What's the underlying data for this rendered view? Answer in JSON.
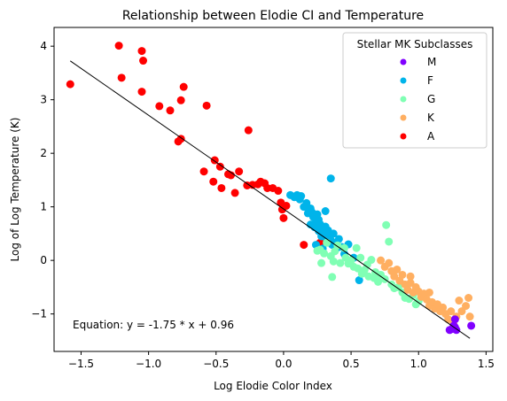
{
  "chart_data": {
    "type": "scatter",
    "title": "Relationship between Elodie CI and Temperature",
    "xlabel": "Log Elodie Color Index",
    "ylabel": "Log of Log Temperature (K)",
    "xlim": [
      -1.7,
      1.55
    ],
    "ylim": [
      -1.7,
      4.35
    ],
    "xticks": [
      -1.5,
      -1.0,
      -0.5,
      0.0,
      0.5,
      1.0,
      1.5
    ],
    "xtick_labels": [
      "−1.5",
      "−1.0",
      "−0.5",
      "0.0",
      "0.5",
      "1.0",
      "1.5"
    ],
    "yticks": [
      -1,
      0,
      1,
      2,
      3,
      4
    ],
    "ytick_labels": [
      "−1",
      "0",
      "1",
      "2",
      "3",
      "4"
    ],
    "grid": false,
    "legend": {
      "title": "Stellar MK Subclasses",
      "placement": "top-right",
      "entries": [
        "M",
        "F",
        "G",
        "K",
        "A"
      ]
    },
    "annotation": "Equation: y = -1.75 * x + 0.96",
    "fit_line": {
      "slope": -1.75,
      "intercept": 0.96,
      "x_range": [
        -1.58,
        1.38
      ]
    },
    "series": [
      {
        "name": "A",
        "color": "#ff0000",
        "points": [
          [
            -1.58,
            3.29
          ],
          [
            -1.22,
            4.01
          ],
          [
            -1.2,
            3.41
          ],
          [
            -1.05,
            3.91
          ],
          [
            -1.04,
            3.73
          ],
          [
            -1.05,
            3.15
          ],
          [
            -0.92,
            2.88
          ],
          [
            -0.84,
            2.8
          ],
          [
            -0.78,
            2.22
          ],
          [
            -0.76,
            2.27
          ],
          [
            -0.76,
            2.99
          ],
          [
            -0.74,
            3.24
          ],
          [
            -0.57,
            2.89
          ],
          [
            -0.59,
            1.66
          ],
          [
            -0.52,
            1.47
          ],
          [
            -0.51,
            1.87
          ],
          [
            -0.47,
            1.75
          ],
          [
            -0.46,
            1.35
          ],
          [
            -0.41,
            1.61
          ],
          [
            -0.39,
            1.59
          ],
          [
            -0.36,
            1.26
          ],
          [
            -0.33,
            1.66
          ],
          [
            -0.27,
            1.4
          ],
          [
            -0.26,
            2.43
          ],
          [
            -0.23,
            1.41
          ],
          [
            -0.19,
            1.42
          ],
          [
            -0.17,
            1.47
          ],
          [
            -0.14,
            1.44
          ],
          [
            -0.12,
            1.35
          ],
          [
            -0.08,
            1.35
          ],
          [
            -0.04,
            1.3
          ],
          [
            -0.02,
            1.08
          ],
          [
            -0.01,
            0.95
          ],
          [
            0.02,
            1.02
          ],
          [
            0.0,
            0.79
          ],
          [
            0.15,
            0.29
          ],
          [
            0.27,
            0.33
          ]
        ]
      },
      {
        "name": "F",
        "color": "#00b4ea",
        "points": [
          [
            0.05,
            1.22
          ],
          [
            0.08,
            1.18
          ],
          [
            0.1,
            1.22
          ],
          [
            0.12,
            1.14
          ],
          [
            0.13,
            1.2
          ],
          [
            0.15,
            1.0
          ],
          [
            0.17,
            1.07
          ],
          [
            0.18,
            0.88
          ],
          [
            0.2,
            0.97
          ],
          [
            0.21,
            0.9
          ],
          [
            0.22,
            0.81
          ],
          [
            0.23,
            0.62
          ],
          [
            0.24,
            0.71
          ],
          [
            0.25,
            0.86
          ],
          [
            0.26,
            0.76
          ],
          [
            0.26,
            0.55
          ],
          [
            0.27,
            0.68
          ],
          [
            0.28,
            0.45
          ],
          [
            0.29,
            0.6
          ],
          [
            0.3,
            0.52
          ],
          [
            0.31,
            0.63
          ],
          [
            0.32,
            0.4
          ],
          [
            0.33,
            0.56
          ],
          [
            0.34,
            0.47
          ],
          [
            0.35,
            0.38
          ],
          [
            0.36,
            0.29
          ],
          [
            0.37,
            0.5
          ],
          [
            0.38,
            0.33
          ],
          [
            0.39,
            0.22
          ],
          [
            0.41,
            0.4
          ],
          [
            0.43,
            0.25
          ],
          [
            0.45,
            0.12
          ],
          [
            0.48,
            0.3
          ],
          [
            0.52,
            0.05
          ],
          [
            0.56,
            -0.37
          ],
          [
            0.35,
            1.53
          ],
          [
            0.31,
            0.92
          ],
          [
            0.29,
            0.22
          ],
          [
            0.24,
            0.29
          ],
          [
            0.2,
            0.67
          ]
        ]
      },
      {
        "name": "G",
        "color": "#80ffb4",
        "points": [
          [
            0.25,
            0.18
          ],
          [
            0.27,
            0.2
          ],
          [
            0.28,
            -0.05
          ],
          [
            0.3,
            0.13
          ],
          [
            0.32,
            0.33
          ],
          [
            0.35,
            0.08
          ],
          [
            0.37,
            -0.02
          ],
          [
            0.38,
            0.17
          ],
          [
            0.4,
            0.28
          ],
          [
            0.42,
            -0.05
          ],
          [
            0.45,
            0.23
          ],
          [
            0.46,
            0.05
          ],
          [
            0.48,
            -0.06
          ],
          [
            0.5,
            0.0
          ],
          [
            0.52,
            -0.12
          ],
          [
            0.54,
            0.23
          ],
          [
            0.55,
            -0.15
          ],
          [
            0.57,
            0.05
          ],
          [
            0.58,
            -0.25
          ],
          [
            0.6,
            -0.18
          ],
          [
            0.62,
            -0.08
          ],
          [
            0.63,
            -0.3
          ],
          [
            0.65,
            0.01
          ],
          [
            0.67,
            -0.33
          ],
          [
            0.68,
            -0.22
          ],
          [
            0.7,
            -0.4
          ],
          [
            0.72,
            -0.27
          ],
          [
            0.75,
            -0.35
          ],
          [
            0.78,
            0.35
          ],
          [
            0.8,
            -0.45
          ],
          [
            0.82,
            -0.52
          ],
          [
            0.85,
            -0.5
          ],
          [
            0.88,
            -0.6
          ],
          [
            0.9,
            -0.7
          ],
          [
            0.93,
            -0.72
          ],
          [
            0.96,
            -0.65
          ],
          [
            0.98,
            -0.82
          ],
          [
            1.0,
            -0.76
          ],
          [
            0.36,
            -0.31
          ],
          [
            0.76,
            0.66
          ]
        ]
      },
      {
        "name": "K",
        "color": "#ffaf61",
        "points": [
          [
            0.72,
            0.0
          ],
          [
            0.75,
            -0.12
          ],
          [
            0.78,
            -0.05
          ],
          [
            0.8,
            -0.2
          ],
          [
            0.82,
            -0.3
          ],
          [
            0.84,
            -0.17
          ],
          [
            0.86,
            -0.38
          ],
          [
            0.88,
            -0.27
          ],
          [
            0.9,
            -0.45
          ],
          [
            0.92,
            -0.55
          ],
          [
            0.94,
            -0.42
          ],
          [
            0.96,
            -0.6
          ],
          [
            0.98,
            -0.5
          ],
          [
            1.0,
            -0.58
          ],
          [
            1.02,
            -0.68
          ],
          [
            1.04,
            -0.62
          ],
          [
            1.06,
            -0.73
          ],
          [
            1.08,
            -0.85
          ],
          [
            1.1,
            -0.78
          ],
          [
            1.12,
            -0.9
          ],
          [
            1.14,
            -0.82
          ],
          [
            1.16,
            -0.95
          ],
          [
            1.18,
            -0.88
          ],
          [
            1.2,
            -1.0
          ],
          [
            1.22,
            -1.1
          ],
          [
            1.24,
            -0.95
          ],
          [
            1.26,
            -1.2
          ],
          [
            1.28,
            -1.05
          ],
          [
            1.3,
            -0.75
          ],
          [
            1.32,
            -0.95
          ],
          [
            1.35,
            -0.85
          ],
          [
            1.37,
            -0.7
          ],
          [
            1.38,
            -1.05
          ],
          [
            1.08,
            -0.6
          ],
          [
            0.94,
            -0.3
          ]
        ]
      },
      {
        "name": "M",
        "color": "#8000ff",
        "points": [
          [
            1.23,
            -1.3
          ],
          [
            1.25,
            -1.28
          ],
          [
            1.26,
            -1.22
          ],
          [
            1.27,
            -1.1
          ],
          [
            1.27,
            -1.25
          ],
          [
            1.28,
            -1.3
          ],
          [
            1.39,
            -1.22
          ]
        ]
      }
    ]
  }
}
